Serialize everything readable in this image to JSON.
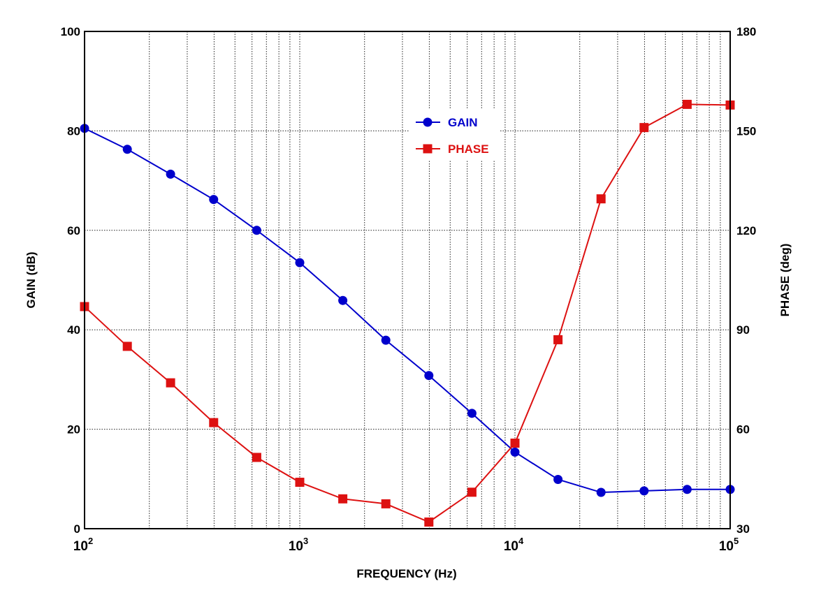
{
  "chart_data": {
    "type": "line",
    "x_scale": "log",
    "xlabel": "FREQUENCY  (Hz)",
    "ylabel_left": "GAIN  (dB)",
    "ylabel_right": "PHASE  (deg)",
    "xlim": [
      100,
      100000
    ],
    "ylim_left": [
      0,
      100
    ],
    "ylim_right": [
      30,
      180
    ],
    "x_ticks": [
      {
        "value": 100,
        "base": "10",
        "exp": "2"
      },
      {
        "value": 1000,
        "base": "10",
        "exp": "3"
      },
      {
        "value": 10000,
        "base": "10",
        "exp": "4"
      },
      {
        "value": 100000,
        "base": "10",
        "exp": "5"
      }
    ],
    "y_left_ticks": [
      "0",
      "20",
      "40",
      "60",
      "80",
      "100"
    ],
    "y_right_ticks": [
      "30",
      "60",
      "90",
      "120",
      "150",
      "180"
    ],
    "grid": true,
    "legend_position": "upper-center",
    "x": [
      100,
      158,
      251,
      398,
      631,
      1000,
      1585,
      2512,
      3981,
      6310,
      10000,
      15849,
      25119,
      39811,
      63096,
      100000
    ],
    "series": [
      {
        "name": "GAIN",
        "axis": "left",
        "color": "#0000cc",
        "marker": "circle",
        "values": [
          80.5,
          76.3,
          71.3,
          66.2,
          60.0,
          53.5,
          45.9,
          37.9,
          30.8,
          23.2,
          15.4,
          9.9,
          7.3,
          7.6,
          7.9,
          7.9
        ]
      },
      {
        "name": "PHASE",
        "axis": "right",
        "color": "#dd1111",
        "marker": "square",
        "values": [
          97.0,
          85.0,
          74.0,
          62.0,
          51.5,
          44.0,
          39.0,
          37.5,
          32.0,
          41.0,
          55.8,
          87.0,
          129.5,
          151.0,
          158.0,
          157.8
        ]
      }
    ]
  }
}
